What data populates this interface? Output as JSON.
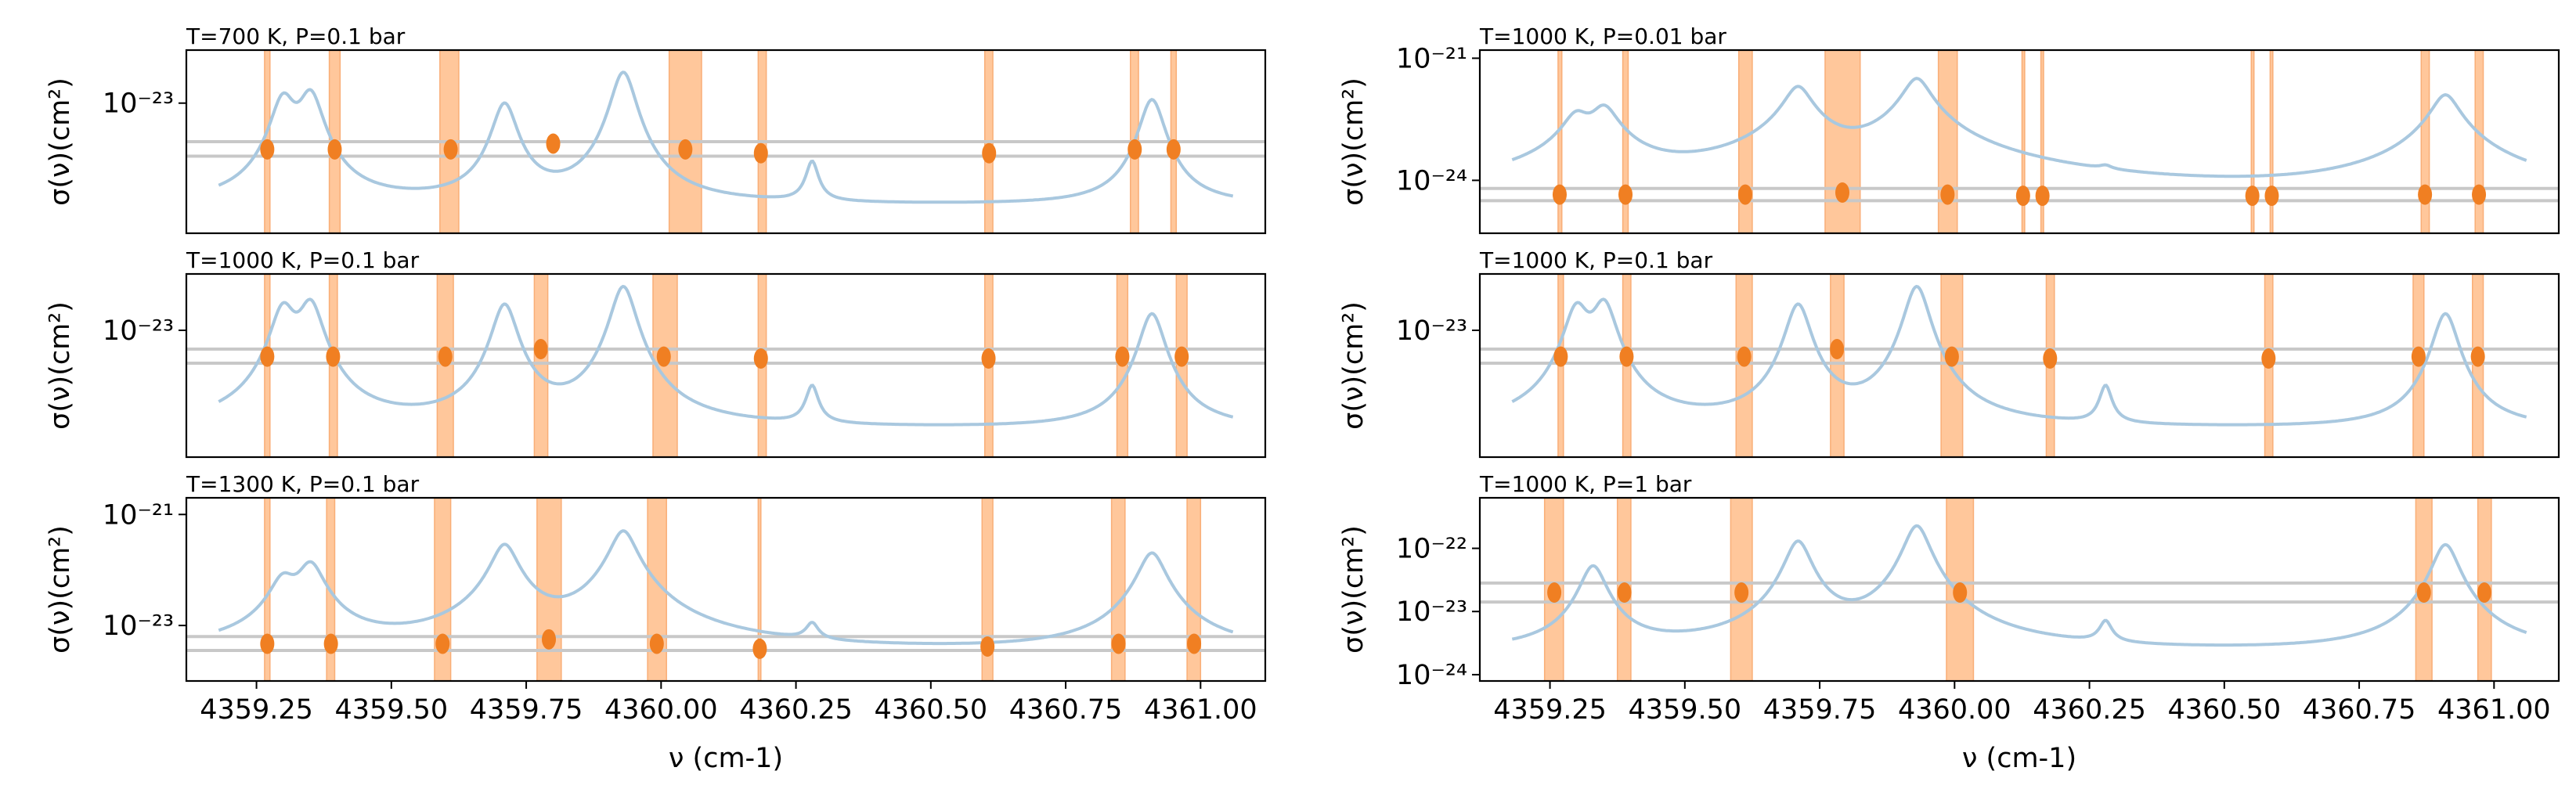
{
  "colors": {
    "spectrum": "#a9c8df",
    "band_fill": "#ffbe8a",
    "band_edge": "#f8a060",
    "marker": "#f07f22",
    "level_line": "#c8c8c8",
    "frame": "#000000"
  },
  "chart_data": [
    {
      "type": "line",
      "title": "T=700 K, P=0.1 bar",
      "ylabel": "σ(ν)(cm²)",
      "xlabel": "",
      "xlim": [
        4359.12,
        4361.12
      ],
      "ylog": true,
      "ylim_log10": [
        -24.35,
        -22.45
      ],
      "yticks": [
        {
          "label": "10⁻²³",
          "value": -23
        }
      ],
      "xticks": [],
      "levels_log10": [
        -23.4,
        -23.55
      ],
      "peaks": [
        [
          4359.3,
          -23.0
        ],
        [
          4359.35,
          -22.95
        ],
        [
          4359.71,
          -23.05
        ],
        [
          4359.93,
          -22.7
        ],
        [
          4360.91,
          -23.0
        ]
      ],
      "bands": [
        [
          4359.265,
          4359.275
        ],
        [
          4359.385,
          4359.405
        ],
        [
          4359.59,
          4359.625
        ],
        [
          4360.015,
          4360.075
        ],
        [
          4360.18,
          4360.195
        ],
        [
          4360.6,
          4360.615
        ],
        [
          4360.87,
          4360.885
        ],
        [
          4360.945,
          4360.955
        ]
      ],
      "markers": [
        [
          4359.27,
          -23.48
        ],
        [
          4359.395,
          -23.48
        ],
        [
          4359.61,
          -23.48
        ],
        [
          4359.8,
          -23.42
        ],
        [
          4360.045,
          -23.48
        ],
        [
          4360.185,
          -23.52
        ],
        [
          4360.608,
          -23.52
        ],
        [
          4360.878,
          -23.48
        ],
        [
          4360.95,
          -23.48
        ]
      ]
    },
    {
      "type": "line",
      "title": "T=1000 K, P=0.1 bar",
      "ylabel": "σ(ν)(cm²)",
      "xlabel": "",
      "xlim": [
        4359.12,
        4361.12
      ],
      "ylog": true,
      "ylim_log10": [
        -24.35,
        -22.4
      ],
      "yticks": [
        {
          "label": "10⁻²³",
          "value": -23
        }
      ],
      "xticks": [],
      "levels_log10": [
        -23.2,
        -23.35
      ],
      "peaks": [
        [
          4359.3,
          -22.8
        ],
        [
          4359.35,
          -22.75
        ],
        [
          4359.71,
          -22.75
        ],
        [
          4359.93,
          -22.55
        ],
        [
          4360.91,
          -22.85
        ]
      ],
      "bands": [
        [
          4359.265,
          4359.275
        ],
        [
          4359.385,
          4359.4
        ],
        [
          4359.585,
          4359.615
        ],
        [
          4359.765,
          4359.79
        ],
        [
          4359.985,
          4360.03
        ],
        [
          4360.18,
          4360.195
        ],
        [
          4360.6,
          4360.615
        ],
        [
          4360.845,
          4360.865
        ],
        [
          4360.955,
          4360.975
        ]
      ],
      "markers": [
        [
          4359.27,
          -23.28
        ],
        [
          4359.392,
          -23.28
        ],
        [
          4359.6,
          -23.28
        ],
        [
          4359.777,
          -23.2
        ],
        [
          4360.005,
          -23.28
        ],
        [
          4360.185,
          -23.3
        ],
        [
          4360.607,
          -23.3
        ],
        [
          4360.855,
          -23.28
        ],
        [
          4360.965,
          -23.28
        ]
      ]
    },
    {
      "type": "line",
      "title": "T=1300 K, P=0.1 bar",
      "ylabel": "σ(ν)(cm²)",
      "xlabel": "ν (cm-1)",
      "xlim": [
        4359.12,
        4361.12
      ],
      "ylog": true,
      "ylim_log10": [
        -24.0,
        -20.7
      ],
      "yticks": [
        {
          "label": "10⁻²³",
          "value": -23
        },
        {
          "label": "10⁻²¹",
          "value": -21
        }
      ],
      "xticks": [
        {
          "label": "4359.25",
          "value": 4359.25
        },
        {
          "label": "4359.50",
          "value": 4359.5
        },
        {
          "label": "4359.75",
          "value": 4359.75
        },
        {
          "label": "4360.00",
          "value": 4360.0
        },
        {
          "label": "4360.25",
          "value": 4360.25
        },
        {
          "label": "4360.50",
          "value": 4360.5
        },
        {
          "label": "4360.75",
          "value": 4360.75
        },
        {
          "label": "4361.00",
          "value": 4361.0
        }
      ],
      "levels_log10": [
        -23.2,
        -23.45
      ],
      "peaks": [
        [
          4359.3,
          -22.2
        ],
        [
          4359.35,
          -21.9
        ],
        [
          4359.71,
          -21.55
        ],
        [
          4359.93,
          -21.3
        ],
        [
          4360.91,
          -21.7
        ]
      ],
      "bands": [
        [
          4359.265,
          4359.275
        ],
        [
          4359.38,
          4359.395
        ],
        [
          4359.58,
          4359.61
        ],
        [
          4359.77,
          4359.815
        ],
        [
          4359.975,
          4360.01
        ],
        [
          4360.18,
          4360.185
        ],
        [
          4360.595,
          4360.615
        ],
        [
          4360.835,
          4360.86
        ],
        [
          4360.975,
          4361.0
        ]
      ],
      "markers": [
        [
          4359.27,
          -23.33
        ],
        [
          4359.388,
          -23.33
        ],
        [
          4359.595,
          -23.33
        ],
        [
          4359.792,
          -23.25
        ],
        [
          4359.992,
          -23.33
        ],
        [
          4360.183,
          -23.42
        ],
        [
          4360.605,
          -23.38
        ],
        [
          4360.848,
          -23.33
        ],
        [
          4360.988,
          -23.33
        ]
      ]
    },
    {
      "type": "line",
      "title": "T=1000 K, P=0.01 bar",
      "ylabel": "σ(ν)(cm²)",
      "xlabel": "",
      "xlim": [
        4359.12,
        4361.12
      ],
      "ylog": true,
      "ylim_log10": [
        -25.3,
        -20.8
      ],
      "yticks": [
        {
          "label": "10⁻²⁴",
          "value": -24
        },
        {
          "label": "10⁻²¹",
          "value": -21
        }
      ],
      "xticks": [],
      "levels_log10": [
        -24.2,
        -24.5
      ],
      "peaks": [
        [
          4359.3,
          -22.4
        ],
        [
          4359.35,
          -22.2
        ],
        [
          4359.71,
          -21.7
        ],
        [
          4359.93,
          -21.5
        ],
        [
          4360.91,
          -21.9
        ]
      ],
      "bands": [
        [
          4359.265,
          4359.272
        ],
        [
          4359.385,
          4359.395
        ],
        [
          4359.6,
          4359.625
        ],
        [
          4359.76,
          4359.825
        ],
        [
          4359.97,
          4360.005
        ],
        [
          4360.125,
          4360.13
        ],
        [
          4360.16,
          4360.165
        ],
        [
          4360.55,
          4360.555
        ],
        [
          4360.585,
          4360.59
        ],
        [
          4360.865,
          4360.88
        ],
        [
          4360.965,
          4360.98
        ]
      ],
      "markers": [
        [
          4359.268,
          -24.35
        ],
        [
          4359.39,
          -24.35
        ],
        [
          4359.612,
          -24.35
        ],
        [
          4359.792,
          -24.3
        ],
        [
          4359.987,
          -24.35
        ],
        [
          4360.127,
          -24.38
        ],
        [
          4360.163,
          -24.38
        ],
        [
          4360.552,
          -24.38
        ],
        [
          4360.588,
          -24.38
        ],
        [
          4360.872,
          -24.35
        ],
        [
          4360.972,
          -24.35
        ]
      ]
    },
    {
      "type": "line",
      "title": "T=1000 K, P=0.1 bar",
      "ylabel": "σ(ν)(cm²)",
      "xlabel": "",
      "xlim": [
        4359.12,
        4361.12
      ],
      "ylog": true,
      "ylim_log10": [
        -24.35,
        -22.4
      ],
      "yticks": [
        {
          "label": "10⁻²³",
          "value": -23
        }
      ],
      "xticks": [],
      "levels_log10": [
        -23.2,
        -23.35
      ],
      "peaks": [
        [
          4359.3,
          -22.8
        ],
        [
          4359.35,
          -22.75
        ],
        [
          4359.71,
          -22.75
        ],
        [
          4359.93,
          -22.55
        ],
        [
          4360.91,
          -22.85
        ]
      ],
      "bands": [
        [
          4359.265,
          4359.275
        ],
        [
          4359.385,
          4359.4
        ],
        [
          4359.595,
          4359.625
        ],
        [
          4359.77,
          4359.795
        ],
        [
          4359.975,
          4360.015
        ],
        [
          4360.17,
          4360.185
        ],
        [
          4360.575,
          4360.59
        ],
        [
          4360.85,
          4360.87
        ],
        [
          4360.96,
          4360.98
        ]
      ],
      "markers": [
        [
          4359.27,
          -23.28
        ],
        [
          4359.392,
          -23.28
        ],
        [
          4359.61,
          -23.28
        ],
        [
          4359.782,
          -23.2
        ],
        [
          4359.995,
          -23.28
        ],
        [
          4360.177,
          -23.3
        ],
        [
          4360.582,
          -23.3
        ],
        [
          4360.86,
          -23.28
        ],
        [
          4360.97,
          -23.28
        ]
      ]
    },
    {
      "type": "line",
      "title": "T=1000 K, P=1 bar",
      "ylabel": "σ(ν)(cm²)",
      "xlabel": "ν (cm-1)",
      "xlim": [
        4359.12,
        4361.12
      ],
      "ylog": true,
      "ylim_log10": [
        -24.1,
        -21.2
      ],
      "yticks": [
        {
          "label": "10⁻²⁴",
          "value": -24
        },
        {
          "label": "10⁻²³",
          "value": -23
        },
        {
          "label": "10⁻²²",
          "value": -22
        }
      ],
      "xticks": [
        {
          "label": "4359.25",
          "value": 4359.25
        },
        {
          "label": "4359.50",
          "value": 4359.5
        },
        {
          "label": "4359.75",
          "value": 4359.75
        },
        {
          "label": "4360.00",
          "value": 4360.0
        },
        {
          "label": "4360.25",
          "value": 4360.25
        },
        {
          "label": "4360.50",
          "value": 4360.5
        },
        {
          "label": "4360.75",
          "value": 4360.75
        },
        {
          "label": "4361.00",
          "value": 4361.0
        }
      ],
      "levels_log10": [
        -22.55,
        -22.85
      ],
      "peaks": [
        [
          4359.33,
          -22.3
        ],
        [
          4359.71,
          -21.9
        ],
        [
          4359.93,
          -21.65
        ],
        [
          4360.91,
          -21.95
        ]
      ],
      "bands": [
        [
          4359.24,
          4359.275
        ],
        [
          4359.375,
          4359.4
        ],
        [
          4359.585,
          4359.625
        ],
        [
          4359.985,
          4360.035
        ],
        [
          4360.855,
          4360.885
        ],
        [
          4360.97,
          4360.995
        ]
      ],
      "markers": [
        [
          4359.258,
          -22.7
        ],
        [
          4359.388,
          -22.7
        ],
        [
          4359.605,
          -22.7
        ],
        [
          4360.01,
          -22.7
        ],
        [
          4360.87,
          -22.7
        ],
        [
          4360.982,
          -22.7
        ]
      ]
    }
  ]
}
